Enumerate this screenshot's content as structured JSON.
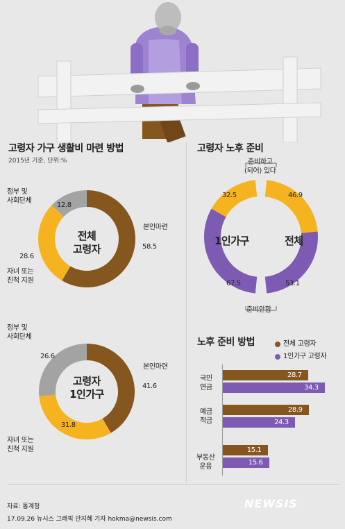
{
  "colors": {
    "brown": "#86561f",
    "yellow": "#f5b31f",
    "gray": "#a3a3a3",
    "purple": "#7d5bb2",
    "background": "#e8e8e8"
  },
  "left_section": {
    "title": "고령자 가구 생활비 마련 방법",
    "subtitle": "2015년 기준, 단위:%"
  },
  "right_section": {
    "title": "고령자 노후 준비",
    "label_top": "준비하고\n(되어) 있다",
    "label_bottom": "준비안함"
  },
  "method_section": {
    "title": "노후 준비 방법",
    "legend": [
      "전체 고령자",
      "1인가구 고령자"
    ]
  },
  "footer": {
    "source": "자료: 통계청",
    "credit": "17.09.26 뉴시스 그래픽 안지혜 기자 hokma@newsis.com",
    "logo": "NEWSIS"
  },
  "chart_data": [
    {
      "type": "pie",
      "subtype": "donut",
      "center_label": "전체\n고령자",
      "slices": [
        {
          "label": "본인마련",
          "value": 58.5,
          "value_text": "58.5",
          "color": "#86561f"
        },
        {
          "label": "자녀 또는\n친척 지원",
          "value": 28.6,
          "value_text": "28.6",
          "color": "#f5b31f"
        },
        {
          "label": "정부 및\n사회단체",
          "value": 12.8,
          "value_text": "12.8",
          "color": "#a3a3a3"
        }
      ]
    },
    {
      "type": "pie",
      "subtype": "donut",
      "center_label": "고령자\n1인가구",
      "slices": [
        {
          "label": "본인마련",
          "value": 41.6,
          "value_text": "41.6",
          "color": "#86561f"
        },
        {
          "label": "자녀 또는\n친척 지원",
          "value": 31.8,
          "value_text": "31.8",
          "color": "#f5b31f"
        },
        {
          "label": "정부 및\n사회단체",
          "value": 26.6,
          "value_text": "26.6",
          "color": "#a3a3a3"
        }
      ]
    },
    {
      "type": "pie",
      "subtype": "half-donut",
      "center_label": "1인가구",
      "slices": [
        {
          "label": "준비하고 (되어) 있다",
          "value": 32.5,
          "value_text": "32.5",
          "color": "#f5b31f"
        },
        {
          "label": "준비안함",
          "value": 67.5,
          "value_text": "67.5",
          "color": "#7d5bb2"
        }
      ]
    },
    {
      "type": "pie",
      "subtype": "half-donut",
      "center_label": "전체",
      "slices": [
        {
          "label": "준비하고 (되어) 있다",
          "value": 46.9,
          "value_text": "46.9",
          "color": "#f5b31f"
        },
        {
          "label": "준비안함",
          "value": 53.1,
          "value_text": "53.1",
          "color": "#7d5bb2"
        }
      ]
    },
    {
      "type": "bar",
      "orientation": "horizontal",
      "categories": [
        "국민\n연금",
        "예금\n적금",
        "부동산\n운용"
      ],
      "series": [
        {
          "name": "전체 고령자",
          "color": "#86561f",
          "values": [
            28.7,
            28.9,
            15.1
          ],
          "value_text": [
            "28.7",
            "28.9",
            "15.1"
          ]
        },
        {
          "name": "1인가구 고령자",
          "color": "#7d5bb2",
          "values": [
            34.3,
            24.3,
            15.6
          ],
          "value_text": [
            "34.3",
            "24.3",
            "15.6"
          ]
        }
      ],
      "xlim": [
        0,
        35
      ]
    }
  ]
}
